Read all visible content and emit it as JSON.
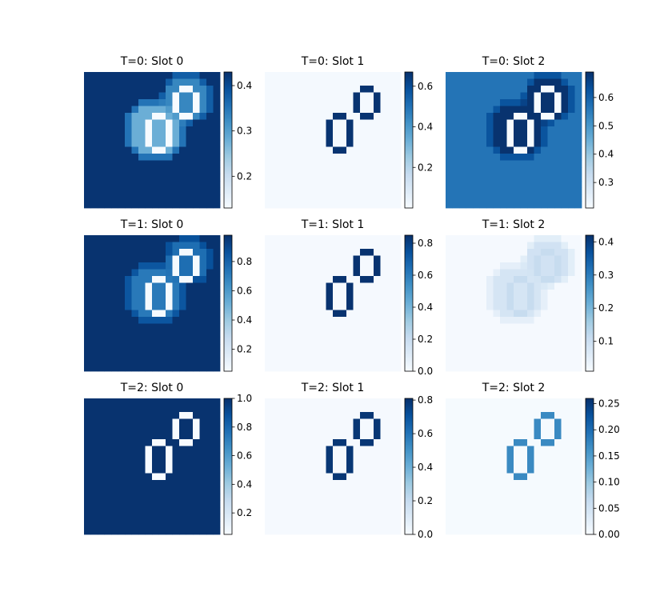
{
  "chart_data": [
    {
      "type": "heatmap",
      "title": "T=0: Slot 0",
      "colormap": "Blues",
      "vmin": 0.13,
      "vmax": 0.43,
      "colorbar_ticks": [
        0.2,
        0.3,
        0.4
      ],
      "colorbar_labels": [
        "0.2",
        "0.3",
        "0.4"
      ],
      "background": 0.425,
      "blobs": [
        {
          "cx": 10.5,
          "cy": 8.5,
          "r": 3.9,
          "val": 0.28
        },
        {
          "cx": 15.2,
          "cy": 3.8,
          "r": 3.0,
          "val": 0.33
        }
      ],
      "outline_value": 0.13,
      "outlines": [
        {
          "cx": 10.5,
          "cy": 8.5,
          "size": "big"
        },
        {
          "cx": 15.2,
          "cy": 3.8,
          "size": "small"
        }
      ]
    },
    {
      "type": "heatmap",
      "title": "T=0: Slot 1",
      "colormap": "Blues",
      "vmin": 0.0,
      "vmax": 0.67,
      "colorbar_ticks": [
        0.2,
        0.4,
        0.6
      ],
      "colorbar_labels": [
        "0.2",
        "0.4",
        "0.6"
      ],
      "background": 0.01,
      "blobs": [],
      "outline_value": 0.66,
      "outlines": [
        {
          "cx": 10.5,
          "cy": 8.5,
          "size": "big"
        },
        {
          "cx": 15.2,
          "cy": 3.8,
          "size": "small"
        }
      ]
    },
    {
      "type": "heatmap",
      "title": "T=0: Slot 2",
      "colormap": "Blues",
      "vmin": 0.21,
      "vmax": 0.69,
      "colorbar_ticks": [
        0.3,
        0.4,
        0.5,
        0.6
      ],
      "colorbar_labels": [
        "0.3",
        "0.4",
        "0.5",
        "0.6"
      ],
      "background": 0.565,
      "blobs": [
        {
          "cx": 10.5,
          "cy": 8.5,
          "r": 3.9,
          "val": 0.685
        },
        {
          "cx": 15.2,
          "cy": 3.8,
          "r": 3.0,
          "val": 0.685
        }
      ],
      "outline_value": 0.21,
      "outlines": [
        {
          "cx": 10.5,
          "cy": 8.5,
          "size": "big"
        },
        {
          "cx": 15.2,
          "cy": 3.8,
          "size": "small"
        }
      ]
    },
    {
      "type": "heatmap",
      "title": "T=1: Slot 0",
      "colormap": "Blues",
      "vmin": 0.05,
      "vmax": 0.98,
      "colorbar_ticks": [
        0.2,
        0.4,
        0.6,
        0.8
      ],
      "colorbar_labels": [
        "0.2",
        "0.4",
        "0.6",
        "0.8"
      ],
      "background": 0.97,
      "blobs": [
        {
          "cx": 10.5,
          "cy": 8.5,
          "r": 3.7,
          "val": 0.72
        },
        {
          "cx": 15.2,
          "cy": 3.8,
          "r": 2.9,
          "val": 0.76
        }
      ],
      "outline_value": 0.06,
      "outlines": [
        {
          "cx": 10.5,
          "cy": 8.5,
          "size": "big"
        },
        {
          "cx": 15.2,
          "cy": 3.8,
          "size": "small"
        }
      ]
    },
    {
      "type": "heatmap",
      "title": "T=1: Slot 1",
      "colormap": "Blues",
      "vmin": 0.0,
      "vmax": 0.85,
      "colorbar_ticks": [
        0.0,
        0.2,
        0.4,
        0.6,
        0.8
      ],
      "colorbar_labels": [
        "0.0",
        "0.2",
        "0.4",
        "0.6",
        "0.8"
      ],
      "background": 0.01,
      "blobs": [],
      "outline_value": 0.84,
      "outlines": [
        {
          "cx": 10.5,
          "cy": 8.5,
          "size": "big"
        },
        {
          "cx": 15.2,
          "cy": 3.8,
          "size": "small"
        }
      ]
    },
    {
      "type": "heatmap",
      "title": "T=1: Slot 2",
      "colormap": "Blues",
      "vmin": 0.01,
      "vmax": 0.42,
      "colorbar_ticks": [
        0.1,
        0.2,
        0.3,
        0.4
      ],
      "colorbar_labels": [
        "0.1",
        "0.2",
        "0.3",
        "0.4"
      ],
      "background": 0.015,
      "blobs": [
        {
          "cx": 10.5,
          "cy": 8.5,
          "r": 3.9,
          "val": 0.08
        },
        {
          "cx": 15.2,
          "cy": 3.8,
          "r": 3.0,
          "val": 0.09
        }
      ],
      "outline_value": 0.11,
      "outlines": [
        {
          "cx": 10.5,
          "cy": 8.5,
          "size": "big"
        },
        {
          "cx": 15.2,
          "cy": 3.8,
          "size": "small"
        }
      ]
    },
    {
      "type": "heatmap",
      "title": "T=2: Slot 0",
      "colormap": "Blues",
      "vmin": 0.05,
      "vmax": 1.0,
      "colorbar_ticks": [
        0.2,
        0.4,
        0.6,
        0.8,
        1.0
      ],
      "colorbar_labels": [
        "0.2",
        "0.4",
        "0.6",
        "0.8",
        "1.0"
      ],
      "background": 0.99,
      "blobs": [],
      "outline_value": 0.05,
      "outlines": [
        {
          "cx": 10.5,
          "cy": 8.5,
          "size": "big"
        },
        {
          "cx": 15.2,
          "cy": 3.8,
          "size": "small"
        }
      ]
    },
    {
      "type": "heatmap",
      "title": "T=2: Slot 1",
      "colormap": "Blues",
      "vmin": 0.0,
      "vmax": 0.81,
      "colorbar_ticks": [
        0.0,
        0.2,
        0.4,
        0.6,
        0.8
      ],
      "colorbar_labels": [
        "0.0",
        "0.2",
        "0.4",
        "0.6",
        "0.8"
      ],
      "background": 0.01,
      "blobs": [],
      "outline_value": 0.79,
      "outlines": [
        {
          "cx": 10.5,
          "cy": 8.5,
          "size": "big"
        },
        {
          "cx": 15.2,
          "cy": 3.8,
          "size": "small"
        }
      ]
    },
    {
      "type": "heatmap",
      "title": "T=2: Slot 2",
      "colormap": "Blues",
      "vmin": 0.0,
      "vmax": 0.26,
      "colorbar_ticks": [
        0.0,
        0.05,
        0.1,
        0.15,
        0.2,
        0.25
      ],
      "colorbar_labels": [
        "0.00",
        "0.05",
        "0.10",
        "0.15",
        "0.20",
        "0.25"
      ],
      "background": 0.003,
      "blobs": [],
      "outline_value": 0.17,
      "outlines": [
        {
          "cx": 10.5,
          "cy": 8.5,
          "size": "big"
        },
        {
          "cx": 15.2,
          "cy": 3.8,
          "size": "small"
        }
      ]
    }
  ]
}
